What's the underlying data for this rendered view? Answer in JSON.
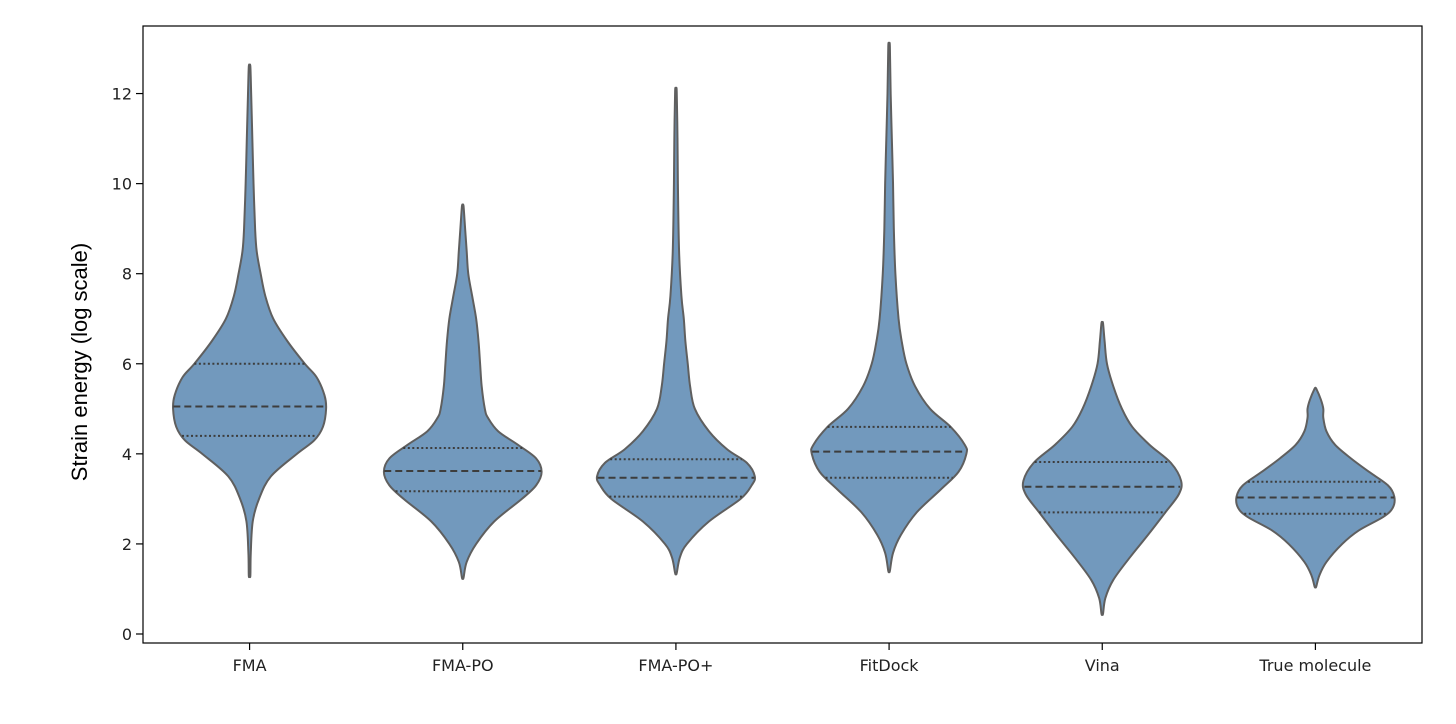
{
  "chart_data": {
    "type": "violin",
    "title": "",
    "xlabel": "",
    "ylabel": "Strain energy (log scale)",
    "ylim": [
      -0.2,
      13.5
    ],
    "yticks": [
      0,
      2,
      4,
      6,
      8,
      10,
      12
    ],
    "grid": false,
    "inner": "quartile",
    "color": "#7299bd",
    "edge_color": "#5f5f5f",
    "categories": [
      "FMA",
      "FMA-PO",
      "FMA-PO+",
      "FitDock",
      "Vina",
      "True molecule"
    ],
    "distributions": [
      {
        "category": "FMA",
        "min": 1.3,
        "max": 12.6,
        "q1": 4.4,
        "median": 5.05,
        "q3": 6.0,
        "profile": [
          [
            1.3,
            0.01
          ],
          [
            1.8,
            0.015
          ],
          [
            2.5,
            0.04
          ],
          [
            3.0,
            0.12
          ],
          [
            3.5,
            0.27
          ],
          [
            4.0,
            0.6
          ],
          [
            4.3,
            0.82
          ],
          [
            4.6,
            0.93
          ],
          [
            5.0,
            0.97
          ],
          [
            5.3,
            0.95
          ],
          [
            5.7,
            0.85
          ],
          [
            6.0,
            0.7
          ],
          [
            6.5,
            0.48
          ],
          [
            7.0,
            0.3
          ],
          [
            7.5,
            0.2
          ],
          [
            8.0,
            0.14
          ],
          [
            8.5,
            0.09
          ],
          [
            9.0,
            0.07
          ],
          [
            10.0,
            0.05
          ],
          [
            11.0,
            0.035
          ],
          [
            12.0,
            0.02
          ],
          [
            12.6,
            0.01
          ]
        ]
      },
      {
        "category": "FMA-PO",
        "min": 1.25,
        "max": 9.5,
        "q1": 3.17,
        "median": 3.62,
        "q3": 4.13,
        "profile": [
          [
            1.25,
            0.01
          ],
          [
            1.6,
            0.05
          ],
          [
            2.0,
            0.17
          ],
          [
            2.5,
            0.4
          ],
          [
            3.0,
            0.75
          ],
          [
            3.3,
            0.93
          ],
          [
            3.6,
            1.0
          ],
          [
            3.9,
            0.93
          ],
          [
            4.2,
            0.7
          ],
          [
            4.5,
            0.45
          ],
          [
            4.8,
            0.32
          ],
          [
            5.0,
            0.28
          ],
          [
            5.5,
            0.24
          ],
          [
            6.0,
            0.22
          ],
          [
            6.5,
            0.2
          ],
          [
            7.0,
            0.17
          ],
          [
            7.5,
            0.12
          ],
          [
            8.0,
            0.07
          ],
          [
            8.5,
            0.05
          ],
          [
            9.0,
            0.03
          ],
          [
            9.5,
            0.01
          ]
        ]
      },
      {
        "category": "FMA-PO+",
        "min": 1.35,
        "max": 12.05,
        "q1": 3.05,
        "median": 3.47,
        "q3": 3.88,
        "profile": [
          [
            1.35,
            0.01
          ],
          [
            1.7,
            0.05
          ],
          [
            2.0,
            0.14
          ],
          [
            2.5,
            0.42
          ],
          [
            3.0,
            0.82
          ],
          [
            3.3,
            0.96
          ],
          [
            3.5,
            1.0
          ],
          [
            3.8,
            0.9
          ],
          [
            4.1,
            0.65
          ],
          [
            4.5,
            0.42
          ],
          [
            5.0,
            0.24
          ],
          [
            5.5,
            0.18
          ],
          [
            6.0,
            0.15
          ],
          [
            6.5,
            0.12
          ],
          [
            7.0,
            0.1
          ],
          [
            7.5,
            0.07
          ],
          [
            8.5,
            0.04
          ],
          [
            10.0,
            0.025
          ],
          [
            11.0,
            0.02
          ],
          [
            12.05,
            0.01
          ]
        ]
      },
      {
        "category": "FitDock",
        "min": 1.4,
        "max": 13.05,
        "q1": 3.47,
        "median": 4.05,
        "q3": 4.6,
        "profile": [
          [
            1.4,
            0.01
          ],
          [
            1.8,
            0.05
          ],
          [
            2.2,
            0.15
          ],
          [
            2.7,
            0.35
          ],
          [
            3.2,
            0.65
          ],
          [
            3.6,
            0.88
          ],
          [
            4.0,
            0.98
          ],
          [
            4.2,
            0.96
          ],
          [
            4.6,
            0.78
          ],
          [
            5.0,
            0.52
          ],
          [
            5.5,
            0.33
          ],
          [
            6.0,
            0.22
          ],
          [
            6.5,
            0.16
          ],
          [
            7.0,
            0.12
          ],
          [
            8.0,
            0.08
          ],
          [
            9.0,
            0.06
          ],
          [
            10.0,
            0.05
          ],
          [
            11.0,
            0.035
          ],
          [
            12.0,
            0.02
          ],
          [
            13.05,
            0.01
          ]
        ]
      },
      {
        "category": "Vina",
        "min": 0.45,
        "max": 6.9,
        "q1": 2.7,
        "median": 3.27,
        "q3": 3.82,
        "profile": [
          [
            0.45,
            0.01
          ],
          [
            0.8,
            0.04
          ],
          [
            1.2,
            0.14
          ],
          [
            1.7,
            0.35
          ],
          [
            2.2,
            0.58
          ],
          [
            2.7,
            0.8
          ],
          [
            3.1,
            0.97
          ],
          [
            3.4,
            1.0
          ],
          [
            3.8,
            0.87
          ],
          [
            4.2,
            0.6
          ],
          [
            4.6,
            0.38
          ],
          [
            5.0,
            0.25
          ],
          [
            5.5,
            0.14
          ],
          [
            6.0,
            0.06
          ],
          [
            6.5,
            0.03
          ],
          [
            6.9,
            0.01
          ]
        ]
      },
      {
        "category": "True molecule",
        "min": 1.05,
        "max": 5.45,
        "q1": 2.67,
        "median": 3.03,
        "q3": 3.38,
        "profile": [
          [
            1.05,
            0.01
          ],
          [
            1.3,
            0.05
          ],
          [
            1.6,
            0.14
          ],
          [
            2.0,
            0.34
          ],
          [
            2.3,
            0.55
          ],
          [
            2.6,
            0.86
          ],
          [
            2.8,
            0.98
          ],
          [
            3.05,
            1.0
          ],
          [
            3.3,
            0.92
          ],
          [
            3.6,
            0.68
          ],
          [
            3.9,
            0.45
          ],
          [
            4.2,
            0.25
          ],
          [
            4.5,
            0.14
          ],
          [
            4.8,
            0.1
          ],
          [
            5.0,
            0.1
          ],
          [
            5.2,
            0.07
          ],
          [
            5.45,
            0.01
          ]
        ]
      }
    ]
  }
}
